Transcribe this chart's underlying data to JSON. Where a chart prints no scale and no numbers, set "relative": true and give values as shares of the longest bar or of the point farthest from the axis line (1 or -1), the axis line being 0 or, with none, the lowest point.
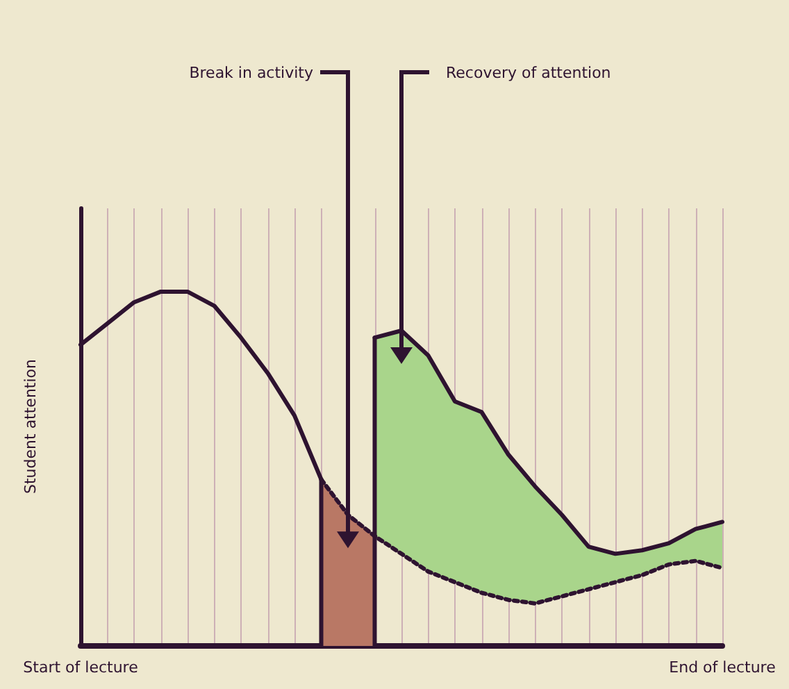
{
  "chart_data": {
    "type": "line",
    "relative": true,
    "ylabel": "Student attention",
    "grid": "x",
    "categories": [
      "Start of lecture",
      null,
      null,
      null,
      null,
      null,
      null,
      null,
      null,
      null,
      null,
      null,
      null,
      null,
      null,
      null,
      null,
      null,
      null,
      null,
      null,
      null,
      null,
      null,
      "End of lecture"
    ],
    "series": [
      {
        "type": "line",
        "color": "#2e1330",
        "line_style": "solid",
        "values": [
          0.85,
          0.91,
          0.97,
          1,
          1,
          0.96,
          0.87,
          0.77,
          0.65,
          0.47,
          null,
          null,
          null,
          null,
          null,
          null,
          null,
          null,
          null,
          null,
          null,
          null,
          null,
          null,
          null
        ]
      },
      {
        "type": "area",
        "color": "#b97865",
        "values": [
          null,
          null,
          null,
          null,
          null,
          null,
          null,
          null,
          null,
          0.47,
          0.37,
          0.31,
          null,
          null,
          null,
          null,
          null,
          null,
          null,
          null,
          null,
          null,
          null,
          null,
          null
        ]
      },
      {
        "type": "area",
        "color": "#a9d58b",
        "values": [
          null,
          null,
          null,
          null,
          null,
          null,
          null,
          null,
          null,
          null,
          null,
          0.87,
          0.89,
          0.82,
          0.69,
          0.66,
          0.54,
          0.45,
          0.37,
          0.28,
          0.26,
          0.27,
          0.29,
          0.33,
          0.35
        ]
      },
      {
        "type": "line",
        "color": "#2e1330",
        "line_style": "dotted",
        "values": [
          null,
          null,
          null,
          null,
          null,
          null,
          null,
          null,
          null,
          0.47,
          0.37,
          0.31,
          0.26,
          0.21,
          0.18,
          0.15,
          0.13,
          0.12,
          0.14,
          0.16,
          0.18,
          0.2,
          0.23,
          0.24,
          0.22
        ]
      }
    ],
    "annotations": [
      "Break in activity",
      "Recovery of attention"
    ]
  }
}
